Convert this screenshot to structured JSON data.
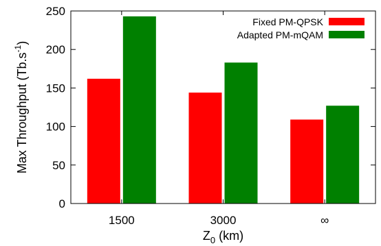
{
  "chart_data": {
    "type": "bar",
    "title": "",
    "xlabel": {
      "main": "Z",
      "sub": "0",
      "rest": " (km)"
    },
    "ylabel": {
      "main": "Max Throughput (Tb.s",
      "sup": "-1",
      "rest": ")"
    },
    "categories": [
      "1500",
      "3000",
      "∞"
    ],
    "series": [
      {
        "name": "Fixed PM-QPSK",
        "color": "#ff0000",
        "values": [
          162,
          144,
          109
        ]
      },
      {
        "name": "Adapted PM-mQAM",
        "color": "#008000",
        "values": [
          243,
          183,
          127
        ]
      }
    ],
    "ylim": [
      0,
      250
    ],
    "yticks": [
      0,
      50,
      100,
      150,
      200,
      250
    ],
    "grid": false,
    "legend_position": "top-right"
  }
}
